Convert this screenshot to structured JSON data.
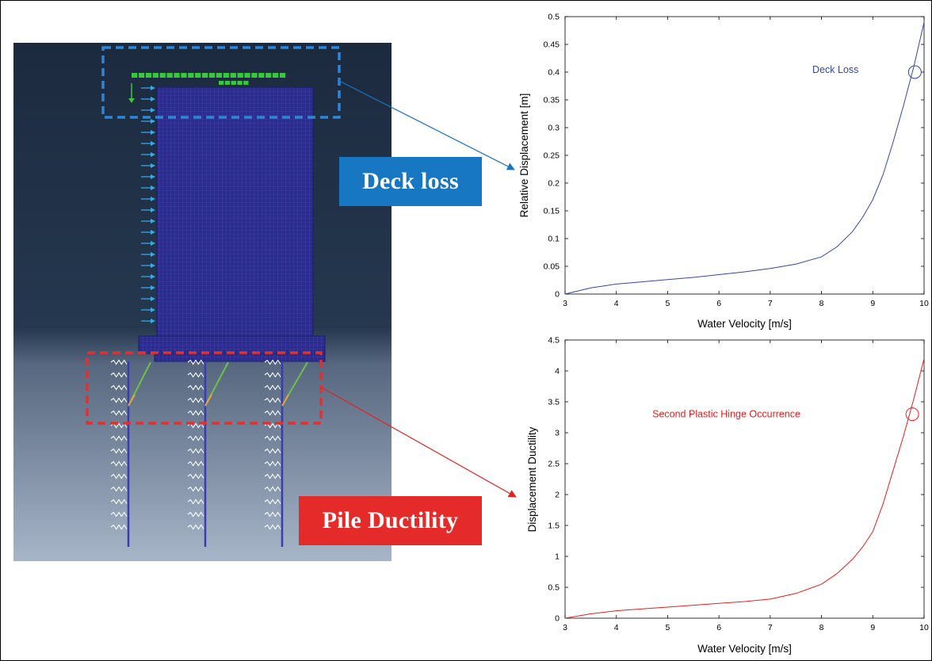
{
  "labels": {
    "deck_loss": "Deck loss",
    "pile_ductility": "Pile Ductility"
  },
  "colors": {
    "deck_blue": "#1877c2",
    "pile_red": "#e52a2a",
    "mesh_blue": "#2b2c8a",
    "load_green": "#38c83c",
    "arrow_cyan": "#39a9e6",
    "model_bg_top": "#1f2d42",
    "model_bg_bottom": "#a3b2c6"
  },
  "chart_data": [
    {
      "type": "line",
      "xlabel": "Water Velocity [m/s]",
      "ylabel": "Relative Displacement [m]",
      "xlim": [
        3,
        10
      ],
      "ylim": [
        0,
        0.5
      ],
      "x_ticks": [
        "3",
        "4",
        "5",
        "6",
        "7",
        "8",
        "9",
        "10"
      ],
      "y_ticks": [
        "0",
        "0.05",
        "0.1",
        "0.15",
        "0.2",
        "0.25",
        "0.3",
        "0.35",
        "0.4",
        "0.45",
        "0.5"
      ],
      "color": "#3447a8",
      "x": [
        3.0,
        3.5,
        4.0,
        4.5,
        5.0,
        5.5,
        6.0,
        6.5,
        7.0,
        7.5,
        8.0,
        8.3,
        8.6,
        8.8,
        9.0,
        9.2,
        9.4,
        9.6,
        9.8,
        10.0
      ],
      "y": [
        0.0,
        0.011,
        0.018,
        0.022,
        0.026,
        0.03,
        0.035,
        0.04,
        0.046,
        0.054,
        0.067,
        0.085,
        0.112,
        0.138,
        0.17,
        0.215,
        0.275,
        0.34,
        0.41,
        0.49
      ],
      "annotation": {
        "text": "Deck Loss",
        "x": 9.82,
        "y": 0.4
      }
    },
    {
      "type": "line",
      "xlabel": "Water Velocity [m/s]",
      "ylabel": "Displacement Ductility",
      "xlim": [
        3,
        10
      ],
      "ylim": [
        0,
        4.5
      ],
      "x_ticks": [
        "3",
        "4",
        "5",
        "6",
        "7",
        "8",
        "9",
        "10"
      ],
      "y_ticks": [
        "0",
        "0.5",
        "1",
        "1.5",
        "2",
        "2.5",
        "3",
        "3.5",
        "4",
        "4.5"
      ],
      "color": "#e42020",
      "x": [
        3.0,
        3.5,
        4.0,
        4.5,
        5.0,
        5.5,
        6.0,
        6.5,
        7.0,
        7.5,
        8.0,
        8.3,
        8.6,
        8.8,
        9.0,
        9.2,
        9.4,
        9.6,
        9.8,
        10.0
      ],
      "y": [
        0.0,
        0.07,
        0.12,
        0.15,
        0.18,
        0.21,
        0.24,
        0.27,
        0.31,
        0.4,
        0.55,
        0.72,
        0.95,
        1.15,
        1.4,
        1.85,
        2.4,
        2.95,
        3.55,
        4.2
      ],
      "annotation": {
        "text": "Second Plastic Hinge Occurrence",
        "x": 9.77,
        "y": 3.3
      }
    }
  ]
}
